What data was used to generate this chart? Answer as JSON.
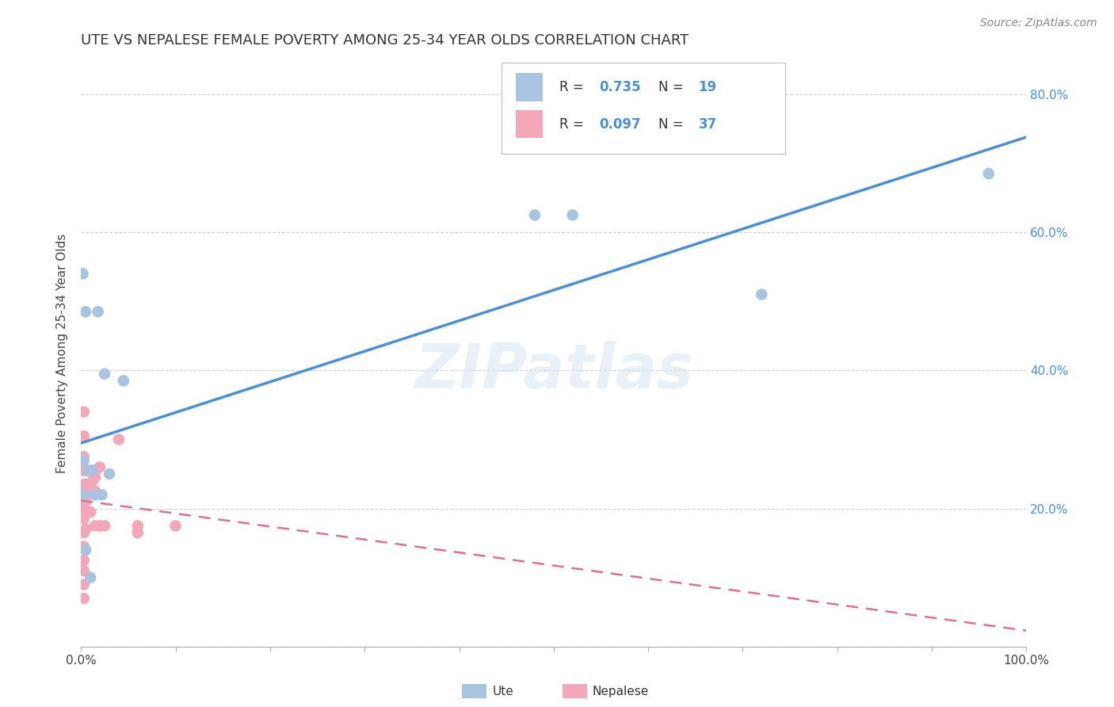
{
  "title": "UTE VS NEPALESE FEMALE POVERTY AMONG 25-34 YEAR OLDS CORRELATION CHART",
  "source": "Source: ZipAtlas.com",
  "ylabel": "Female Poverty Among 25-34 Year Olds",
  "xlim": [
    0.0,
    1.0
  ],
  "ylim": [
    0.0,
    0.85
  ],
  "yticks": [
    0.0,
    0.2,
    0.4,
    0.6,
    0.8
  ],
  "yticklabels_right": [
    "",
    "20.0%",
    "40.0%",
    "60.0%",
    "80.0%"
  ],
  "ute_color": "#a8c4e0",
  "nepalese_color": "#f4a7b9",
  "ute_line_color": "#4a90d9",
  "nepalese_line_color": "#e07090",
  "legend_r_ute": "0.735",
  "legend_n_ute": "19",
  "legend_r_nep": "0.097",
  "legend_n_nep": "37",
  "ute_x": [
    0.002,
    0.005,
    0.018,
    0.025,
    0.003,
    0.008,
    0.012,
    0.015,
    0.022,
    0.03,
    0.045,
    0.005,
    0.01,
    0.48,
    0.52,
    0.72,
    0.96,
    0.003,
    0.015
  ],
  "ute_y": [
    0.54,
    0.485,
    0.485,
    0.395,
    0.27,
    0.255,
    0.255,
    0.22,
    0.22,
    0.25,
    0.385,
    0.14,
    0.1,
    0.625,
    0.625,
    0.51,
    0.685,
    0.22,
    0.22
  ],
  "nep_x": [
    0.003,
    0.003,
    0.003,
    0.003,
    0.003,
    0.003,
    0.003,
    0.003,
    0.003,
    0.003,
    0.003,
    0.003,
    0.003,
    0.003,
    0.003,
    0.005,
    0.005,
    0.005,
    0.005,
    0.005,
    0.008,
    0.01,
    0.01,
    0.01,
    0.012,
    0.012,
    0.015,
    0.015,
    0.015,
    0.015,
    0.02,
    0.02,
    0.025,
    0.04,
    0.06,
    0.06,
    0.1
  ],
  "nep_y": [
    0.34,
    0.305,
    0.275,
    0.255,
    0.235,
    0.22,
    0.205,
    0.195,
    0.185,
    0.165,
    0.145,
    0.125,
    0.11,
    0.09,
    0.07,
    0.255,
    0.235,
    0.21,
    0.195,
    0.17,
    0.255,
    0.255,
    0.225,
    0.195,
    0.255,
    0.24,
    0.255,
    0.245,
    0.225,
    0.175,
    0.26,
    0.175,
    0.175,
    0.3,
    0.175,
    0.165,
    0.175
  ],
  "background_color": "#ffffff",
  "watermark": "ZIPatlas",
  "title_fontsize": 13,
  "axis_label_fontsize": 11,
  "tick_fontsize": 11,
  "legend_fontsize": 12,
  "source_fontsize": 10,
  "grid_color": "#cccccc"
}
